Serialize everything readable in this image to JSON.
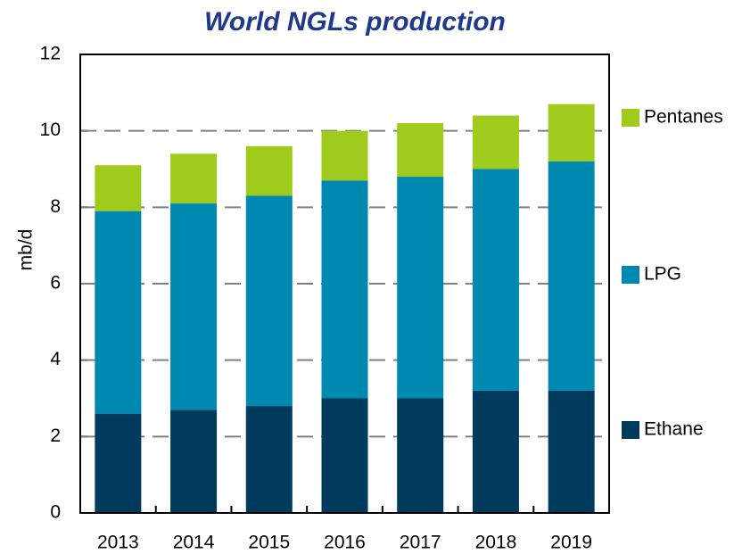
{
  "chart_data": {
    "type": "stacked_bar",
    "title": "World NGLs production",
    "y_label": "mb/d",
    "categories": [
      "2013",
      "2014",
      "2015",
      "2016",
      "2017",
      "2018",
      "2019"
    ],
    "series": [
      {
        "name": "Ethane",
        "color": "#003a5d",
        "values": [
          2.6,
          2.7,
          2.8,
          3.0,
          3.0,
          3.2,
          3.2
        ]
      },
      {
        "name": "LPG",
        "color": "#0089b0",
        "values": [
          5.3,
          5.4,
          5.5,
          5.7,
          5.8,
          5.8,
          6.0
        ]
      },
      {
        "name": "Pentanes",
        "color": "#9ecb1c",
        "values": [
          1.2,
          1.3,
          1.3,
          1.3,
          1.4,
          1.4,
          1.5
        ]
      }
    ],
    "ylim": [
      0,
      12
    ],
    "yticks": [
      0,
      2,
      4,
      6,
      8,
      10,
      12
    ],
    "grid": true,
    "legend": "right"
  }
}
